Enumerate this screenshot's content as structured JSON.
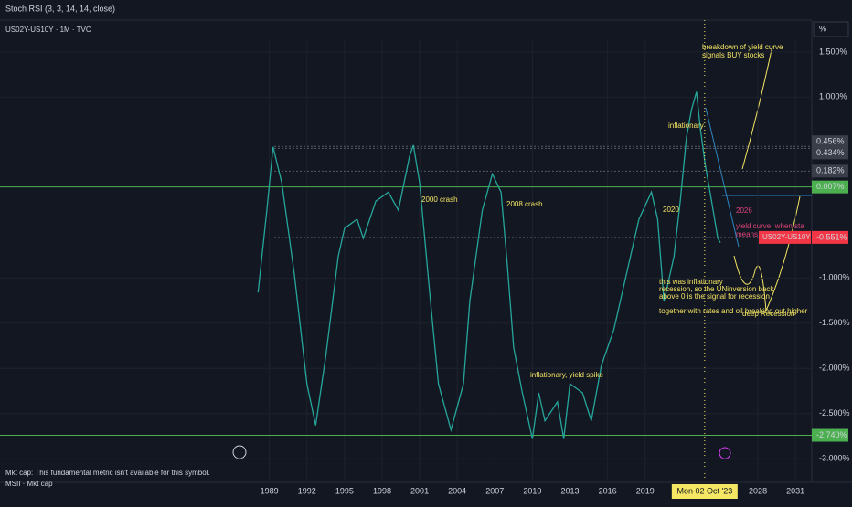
{
  "chart_data": {
    "type": "line",
    "indicator": "Stoch RSI (3, 3, 14, 14, close)",
    "title": "US02Y-US10Y · 1M · TVC",
    "unit_button": "%",
    "x": [
      1988.1,
      1988.8,
      1989.3,
      1990,
      1991,
      1992,
      1992.7,
      1993.5,
      1994.5,
      1995,
      1996,
      1996.5,
      1997.5,
      1998.5,
      1999.3,
      2000.2,
      2000.5,
      2001,
      2001.8,
      2002.5,
      2003.5,
      2004.5,
      2005,
      2006,
      2006.8,
      2007.5,
      2008,
      2008.5,
      2009.2,
      2010,
      2010.5,
      2011,
      2012,
      2012.5,
      2013,
      2014,
      2014.7,
      2015.5,
      2016.5,
      2017.5,
      2018.5,
      2019.5,
      2020,
      2020.5,
      2021.3,
      2021.8,
      2022.3,
      2022.7,
      2023.1,
      2023.4,
      2023.8,
      2024.3,
      2024.8,
      2025.0
    ],
    "series": [
      {
        "name": "US02Y-US10Y",
        "color": "#26a69a",
        "values": [
          -1.16,
          -0.25,
          0.45,
          0.05,
          -0.96,
          -2.17,
          -2.63,
          -1.87,
          -0.76,
          -0.45,
          -0.35,
          -0.56,
          -0.15,
          -0.05,
          -0.25,
          0.35,
          0.47,
          0.05,
          -1.16,
          -2.17,
          -2.68,
          -2.17,
          -1.26,
          -0.25,
          0.15,
          -0.05,
          -0.86,
          -1.77,
          -2.27,
          -2.78,
          -2.27,
          -2.58,
          -2.37,
          -2.78,
          -2.17,
          -2.27,
          -2.58,
          -1.97,
          -1.57,
          -0.96,
          -0.35,
          -0.05,
          -0.35,
          -1.26,
          -0.76,
          -0.15,
          0.56,
          0.86,
          1.06,
          0.66,
          0.25,
          -0.15,
          -0.56,
          -0.61
        ]
      }
    ],
    "xlim": [
      1967.5,
      2032.3
    ],
    "xticks": [
      1989,
      1992,
      1995,
      1998,
      2001,
      2004,
      2007,
      2010,
      2013,
      2016,
      2019,
      2028,
      2031
    ],
    "ylim": [
      -3.26,
      1.62
    ],
    "yticks": [
      {
        "value": 1.5,
        "label": "1.500%"
      },
      {
        "value": 1.0,
        "label": "1.000%"
      },
      {
        "value": -1.0,
        "label": "-1.000%"
      },
      {
        "value": -1.5,
        "label": "-1.500%"
      },
      {
        "value": -2.0,
        "label": "-2.000%"
      },
      {
        "value": -2.5,
        "label": "-2.500%"
      },
      {
        "value": -3.0,
        "label": "-3.000%"
      }
    ],
    "price_labels": [
      {
        "value": 0.456,
        "label": "0.456%",
        "color": "#3a3e48"
      },
      {
        "value": 0.434,
        "label": "0.434%",
        "color": "#3a3e48"
      },
      {
        "value": 0.182,
        "label": "0.182%",
        "color": "#3a3e48"
      },
      {
        "value": 0.007,
        "label": "0.007%",
        "color": "#4caf50"
      },
      {
        "value": -0.551,
        "label": "-0.551%",
        "color": "#f23645"
      },
      {
        "value": -2.74,
        "label": "-2.740%",
        "color": "#4caf50"
      }
    ],
    "symbol_tag": "US02Y-US10Y",
    "crosshair": {
      "x": 2023.75,
      "label": "Mon 02 Oct '23"
    },
    "annotations": [
      {
        "text": "breakdown of yield curve",
        "color": "#f5e663"
      },
      {
        "text": "signals BUY stocks",
        "color": "#f5e663"
      },
      {
        "text": "inflationary",
        "color": "#f5e663"
      },
      {
        "text": "2000 crash",
        "color": "#f5e663"
      },
      {
        "text": "2008 crash",
        "color": "#f5e663"
      },
      {
        "text": "2020",
        "color": "#f5e663"
      },
      {
        "text": "2026",
        "color": "#e0457b"
      },
      {
        "text": "yield curve, when sta",
        "color": "#e0457b"
      },
      {
        "text": "means",
        "color": "#e0457b"
      },
      {
        "text": "this was inflationary",
        "color": "#f5e663"
      },
      {
        "text": "recession, so the UNinversion back",
        "color": "#f5e663"
      },
      {
        "text": "above 0 is the signal for recession",
        "color": "#f5e663"
      },
      {
        "text": "together with rates and oil breaking out higher",
        "color": "#f5e663"
      },
      {
        "text": "deep Recession",
        "color": "#f5e663"
      },
      {
        "text": "inflationary, yield spike",
        "color": "#f5e663"
      }
    ],
    "footer": [
      "Mkt cap: This fundamental metric isn't available for this symbol.",
      "MSII · Mkt cap"
    ]
  }
}
